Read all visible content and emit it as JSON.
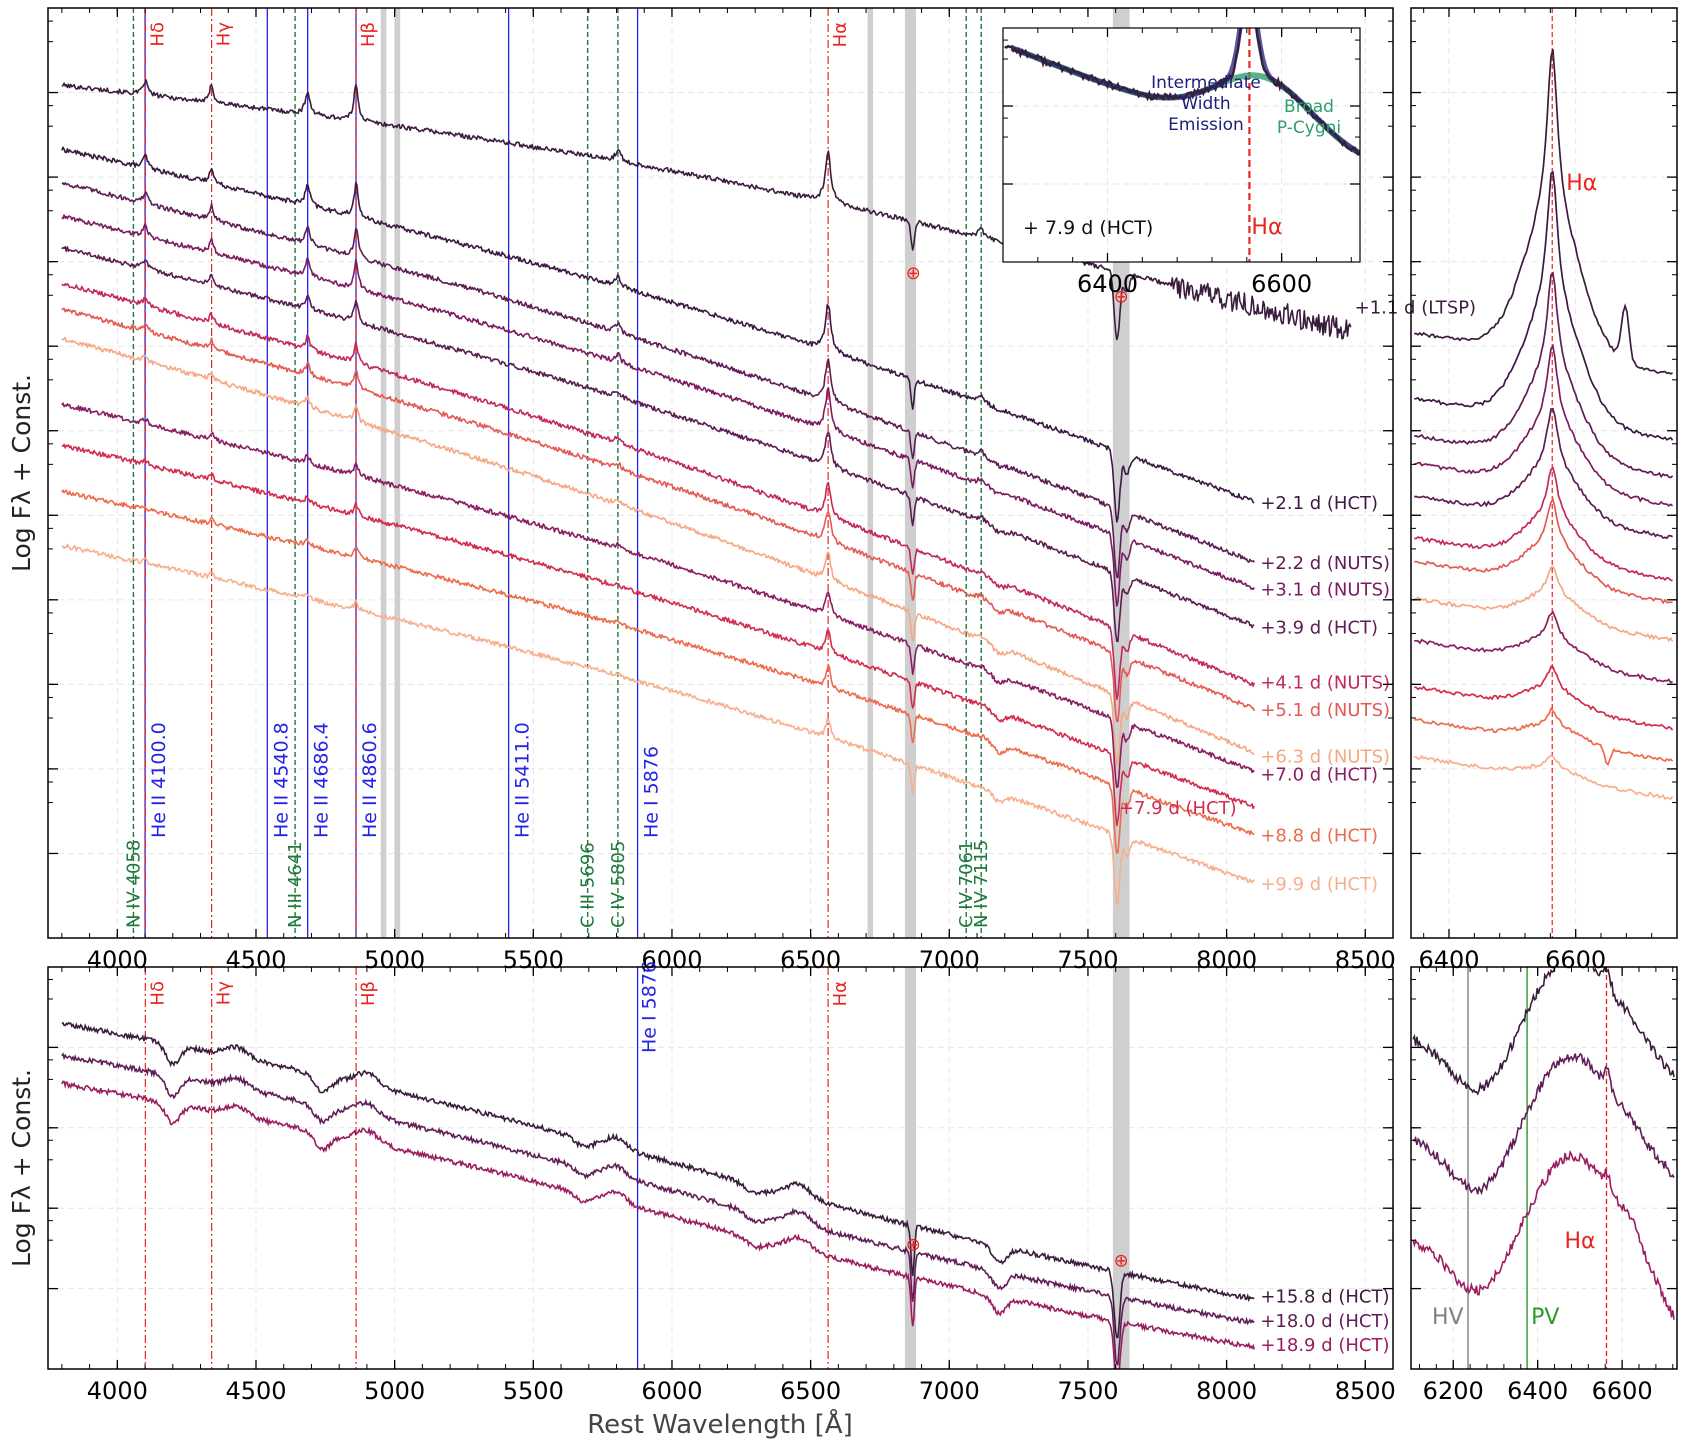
{
  "figure": {
    "ylabel": "Log Fλ + Const.",
    "xlabel": "Rest Wavelength [Å]",
    "earth_symbol": "⊕"
  },
  "colors": {
    "emission_red": "#e8251f",
    "helium_blue": "#2424e6",
    "nitrogen_green": "#1f7a3c",
    "telluric_gray": "#cfcfcf",
    "inset_blue": "#1b1f7a",
    "inset_green": "#2e9e6b",
    "hv_gray": "#808080",
    "pv_green": "#2a9a2a"
  },
  "chart_data": [
    {
      "id": "top-main",
      "type": "line",
      "xlabel": "",
      "ylabel": "Log Fλ + Const.",
      "xlim": [
        3750,
        8600
      ],
      "ylim": [
        0,
        1
      ],
      "xticks": [
        4000,
        4500,
        5000,
        5500,
        6000,
        6500,
        7000,
        7500,
        8000,
        8500
      ],
      "telluric_bands": [
        [
          6840,
          6880
        ],
        [
          7590,
          7650
        ],
        [
          4950,
          4970
        ],
        [
          5000,
          5020
        ],
        [
          6705,
          6725
        ]
      ],
      "earth_markers": [
        {
          "x": 6870,
          "y": 0.715
        },
        {
          "x": 7620,
          "y": 0.69
        }
      ],
      "balmer_lines": [
        {
          "name": "Hδ",
          "x": 4101
        },
        {
          "name": "Hγ",
          "x": 4340
        },
        {
          "name": "Hβ",
          "x": 4861
        },
        {
          "name": "Hα",
          "x": 6563
        }
      ],
      "helium_lines": [
        {
          "name": "He II 4100.0",
          "x": 4100.0
        },
        {
          "name": "He II 4540.8",
          "x": 4540.8
        },
        {
          "name": "He II 4686.4",
          "x": 4686.4
        },
        {
          "name": "He II 4860.6",
          "x": 4860.6
        },
        {
          "name": "He II 5411.0",
          "x": 5411.0
        },
        {
          "name": "He I 5876",
          "x": 5876
        }
      ],
      "cno_lines": [
        {
          "name": "N IV 4058",
          "x": 4058
        },
        {
          "name": "N III 4641",
          "x": 4641
        },
        {
          "name": "C III 5696",
          "x": 5696
        },
        {
          "name": "C IV 5805",
          "x": 5805
        },
        {
          "name": "C IV 7061",
          "x": 7061
        },
        {
          "name": "N IV 7115",
          "x": 7115
        }
      ],
      "series": [
        {
          "name": "+1.1 d (LTSP)",
          "color": "#3b1c3d",
          "xmax": 8450,
          "y0": 0.917,
          "y1": 0.678,
          "feature": 1.0
        },
        {
          "name": "+2.1 d (HCT)",
          "color": "#3c1845",
          "xmax": 8100,
          "y0": 0.848,
          "y1": 0.468,
          "feature": 0.9
        },
        {
          "name": "+2.2 d (NUTS)",
          "color": "#5e1e55",
          "xmax": 8100,
          "y0": 0.812,
          "y1": 0.403,
          "feature": 0.8
        },
        {
          "name": "+3.1 d (NUTS)",
          "color": "#7b1c61",
          "xmax": 8100,
          "y0": 0.776,
          "y1": 0.375,
          "feature": 0.75
        },
        {
          "name": "+3.9 d (HCT)",
          "color": "#5b1d52",
          "xmax": 8100,
          "y0": 0.742,
          "y1": 0.334,
          "feature": 0.6
        },
        {
          "name": "+4.1 d (NUTS)",
          "color": "#c2295e",
          "xmax": 8100,
          "y0": 0.704,
          "y1": 0.271,
          "feature": 0.55
        },
        {
          "name": "+5.1 d (NUTS)",
          "color": "#e35b55",
          "xmax": 8100,
          "y0": 0.676,
          "y1": 0.245,
          "feature": 0.5
        },
        {
          "name": "+6.3 d (NUTS)",
          "color": "#f5a882",
          "xmax": 8100,
          "y0": 0.645,
          "y1": 0.198,
          "feature": 0.4
        },
        {
          "name": "+7.0 d (HCT)",
          "color": "#8a1e63",
          "xmax": 8100,
          "y0": 0.574,
          "y1": 0.178,
          "feature": 0.35
        },
        {
          "name": "+7.9 d (HCT)",
          "color": "#d22c4e",
          "xmax": 8100,
          "y0": 0.53,
          "y1": 0.14,
          "feature": 0.3
        },
        {
          "name": "+8.8 d (HCT)",
          "color": "#ec6c4b",
          "xmax": 8100,
          "y0": 0.48,
          "y1": 0.11,
          "feature": 0.25
        },
        {
          "name": "+9.9 d (HCT)",
          "color": "#f7b08e",
          "xmax": 8100,
          "y0": 0.422,
          "y1": 0.058,
          "feature": 0.2
        }
      ],
      "labels": [
        {
          "text": "+1.1 d (LTSP)",
          "x": 8440,
          "y": 0.678
        },
        {
          "text": "+2.1 d (HCT)",
          "x": 8100,
          "y": 0.468
        },
        {
          "text": "+2.2 d (NUTS)",
          "x": 8100,
          "y": 0.403
        },
        {
          "text": "+3.1 d (NUTS)",
          "x": 8100,
          "y": 0.375
        },
        {
          "text": "+3.9 d (HCT)",
          "x": 8100,
          "y": 0.334
        },
        {
          "text": "+4.1 d (NUTS)",
          "x": 8100,
          "y": 0.275
        },
        {
          "text": "+5.1 d (NUTS)",
          "x": 8100,
          "y": 0.245
        },
        {
          "text": "+6.3 d (NUTS)",
          "x": 8100,
          "y": 0.195
        },
        {
          "text": "+7.0 d (HCT)",
          "x": 8100,
          "y": 0.176
        },
        {
          "text": "+7.9 d (HCT)",
          "x": 7590,
          "y": 0.14
        },
        {
          "text": "+8.8 d (HCT)",
          "x": 8100,
          "y": 0.11
        },
        {
          "text": "+9.9 d (HCT)",
          "x": 8100,
          "y": 0.058
        }
      ]
    },
    {
      "id": "top-inset",
      "type": "line",
      "xlim": [
        6280,
        6690
      ],
      "ylim": [
        0,
        1
      ],
      "xticks": [
        6400,
        6600
      ],
      "epoch_label": "+ 7.9 d (HCT)",
      "line_label": "Hα",
      "line_x": 6563,
      "annotations": [
        "Intermediate",
        "Width",
        "Emission",
        "Broad",
        "P-Cygni"
      ],
      "data": {
        "name": "+7.9 d (HCT)",
        "color": "#3a1c3c"
      },
      "fit_intermediate": {
        "name": "Intermediate Width Emission",
        "color": "#1b1f7a"
      },
      "fit_broad": {
        "name": "Broad P-Cygni",
        "color": "#2e9e6b"
      }
    },
    {
      "id": "top-right",
      "type": "line",
      "xlim": [
        6340,
        6760
      ],
      "ylim": [
        0,
        1
      ],
      "xticks": [
        6400,
        6600
      ],
      "line_label": "Hα",
      "line_x": 6563
    },
    {
      "id": "bottom-main",
      "type": "line",
      "xlabel": "Rest Wavelength [Å]",
      "ylabel": "Log Fλ + Const.",
      "xlim": [
        3750,
        8600
      ],
      "ylim": [
        0,
        1
      ],
      "xticks": [
        4000,
        4500,
        5000,
        5500,
        6000,
        6500,
        7000,
        7500,
        8000,
        8500
      ],
      "telluric_bands": [
        [
          6840,
          6880
        ],
        [
          7590,
          7650
        ]
      ],
      "earth_markers": [
        {
          "x": 6870,
          "y": 0.31
        },
        {
          "x": 7620,
          "y": 0.27
        }
      ],
      "balmer_lines": [
        {
          "name": "Hδ",
          "x": 4101
        },
        {
          "name": "Hγ",
          "x": 4340
        },
        {
          "name": "Hβ",
          "x": 4861
        },
        {
          "name": "Hα",
          "x": 6563
        }
      ],
      "helium_lines": [
        {
          "name": "He I 5876",
          "x": 5876
        }
      ],
      "series": [
        {
          "name": "+15.8 d (HCT)",
          "color": "#3a1c3c",
          "xmax": 8100,
          "y0": 0.86,
          "y1": 0.18
        },
        {
          "name": "+18.0 d (HCT)",
          "color": "#601e56",
          "xmax": 8100,
          "y0": 0.78,
          "y1": 0.12
        },
        {
          "name": "+18.9 d (HCT)",
          "color": "#9a1e5f",
          "xmax": 8100,
          "y0": 0.71,
          "y1": 0.06
        }
      ],
      "labels": [
        {
          "text": "+15.8 d (HCT)",
          "x": 8100,
          "y": 0.18
        },
        {
          "text": "+18.0 d (HCT)",
          "x": 8100,
          "y": 0.12
        },
        {
          "text": "+18.9 d (HCT)",
          "x": 8100,
          "y": 0.06
        }
      ]
    },
    {
      "id": "bottom-right",
      "type": "line",
      "xlim": [
        6100,
        6730
      ],
      "ylim": [
        0,
        1
      ],
      "xticks": [
        6200,
        6400,
        6600
      ],
      "markers": [
        {
          "name": "HV",
          "x": 6235,
          "color": "#808080"
        },
        {
          "name": "PV",
          "x": 6375,
          "color": "#2a9a2a"
        },
        {
          "name": "Hα",
          "x": 6563,
          "color": "#e8251f"
        }
      ]
    }
  ]
}
